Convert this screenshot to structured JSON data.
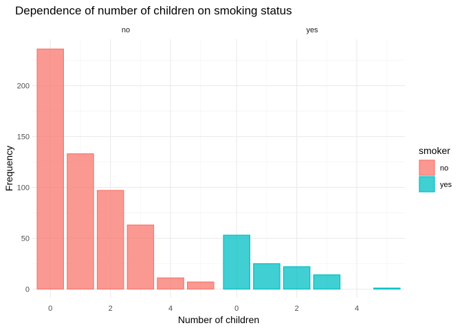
{
  "chart_data": {
    "type": "bar",
    "title": "Dependence of number of children on smoking status",
    "xlabel": "Number of children",
    "ylabel": "Frequency",
    "x": [
      0,
      1,
      2,
      3,
      4,
      5
    ],
    "xlim": [
      -0.6,
      5.6
    ],
    "ylim": [
      0,
      245
    ],
    "x_ticks": [
      0,
      2,
      4
    ],
    "y_ticks": [
      0,
      50,
      100,
      150,
      200
    ],
    "grid": true,
    "legend": {
      "title": "smoker",
      "position": "right"
    },
    "facets": [
      {
        "label": "no",
        "series": "no",
        "color": "#F8766D",
        "values": [
          236,
          133,
          97,
          63,
          11,
          7
        ]
      },
      {
        "label": "yes",
        "series": "yes",
        "color": "#00BFC4",
        "values": [
          53,
          25,
          22,
          14,
          0,
          1
        ]
      }
    ],
    "legend_items": [
      {
        "label": "no",
        "color": "#F8766D"
      },
      {
        "label": "yes",
        "color": "#00BFC4"
      }
    ]
  }
}
